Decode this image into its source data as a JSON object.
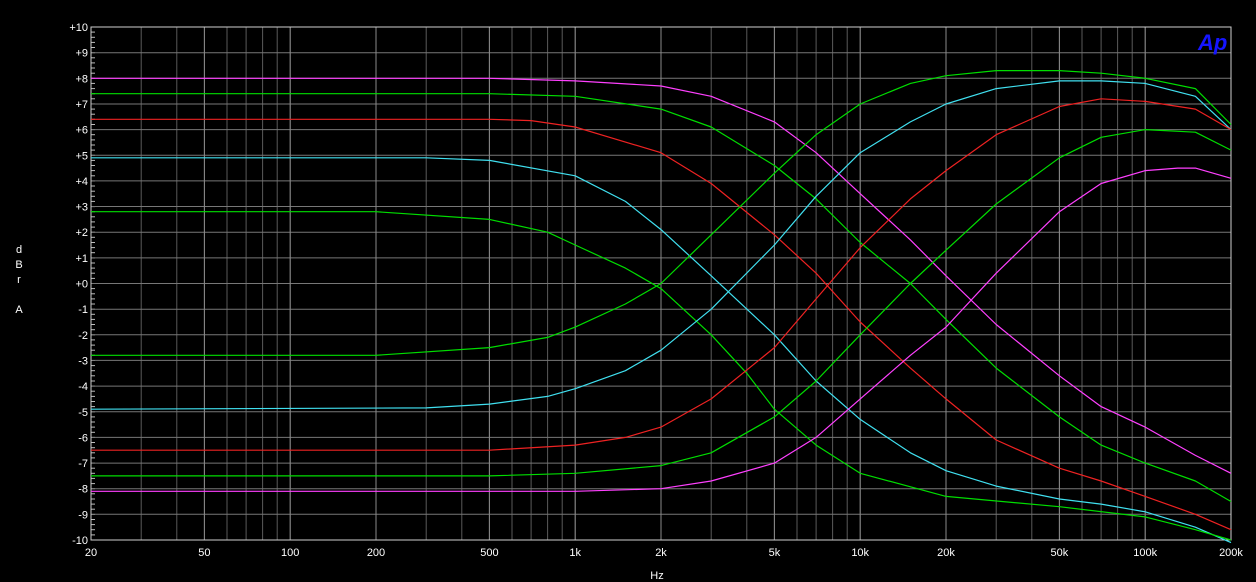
{
  "chart_data": {
    "type": "line",
    "logo": "Ap",
    "ylabel": [
      "d",
      "B",
      "r",
      "",
      "A"
    ],
    "xlabel": "Hz",
    "x_scale": "log",
    "xlim": [
      20,
      200000
    ],
    "ylim": [
      -10,
      10
    ],
    "grid": true,
    "x_ticks": [
      {
        "v": 20,
        "label": "20"
      },
      {
        "v": 50,
        "label": "50"
      },
      {
        "v": 100,
        "label": "100"
      },
      {
        "v": 200,
        "label": "200"
      },
      {
        "v": 500,
        "label": "500"
      },
      {
        "v": 1000,
        "label": "1k"
      },
      {
        "v": 2000,
        "label": "2k"
      },
      {
        "v": 5000,
        "label": "5k"
      },
      {
        "v": 10000,
        "label": "10k"
      },
      {
        "v": 20000,
        "label": "20k"
      },
      {
        "v": 50000,
        "label": "50k"
      },
      {
        "v": 100000,
        "label": "100k"
      },
      {
        "v": 200000,
        "label": "200k"
      }
    ],
    "y_ticks": [
      {
        "v": 10,
        "label": "+10"
      },
      {
        "v": 9,
        "label": "+9"
      },
      {
        "v": 8,
        "label": "+8"
      },
      {
        "v": 7,
        "label": "+7"
      },
      {
        "v": 6,
        "label": "+6"
      },
      {
        "v": 5,
        "label": "+5"
      },
      {
        "v": 4,
        "label": "+4"
      },
      {
        "v": 3,
        "label": "+3"
      },
      {
        "v": 2,
        "label": "+2"
      },
      {
        "v": 1,
        "label": "+1"
      },
      {
        "v": 0,
        "label": "+0"
      },
      {
        "v": -1,
        "label": "-1"
      },
      {
        "v": -2,
        "label": "-2"
      },
      {
        "v": -3,
        "label": "-3"
      },
      {
        "v": -4,
        "label": "-4"
      },
      {
        "v": -5,
        "label": "-5"
      },
      {
        "v": -6,
        "label": "-6"
      },
      {
        "v": -7,
        "label": "-7"
      },
      {
        "v": -8,
        "label": "-8"
      },
      {
        "v": -9,
        "label": "-9"
      },
      {
        "v": -10,
        "label": "-10"
      }
    ],
    "series": [
      {
        "color": "#ff40ff",
        "points": [
          [
            20,
            8
          ],
          [
            500,
            8
          ],
          [
            1000,
            7.9
          ],
          [
            2000,
            7.7
          ],
          [
            3000,
            7.3
          ],
          [
            5000,
            6.3
          ],
          [
            7000,
            5.1
          ],
          [
            10000,
            3.5
          ],
          [
            15000,
            1.7
          ],
          [
            20000,
            0.3
          ],
          [
            30000,
            -1.6
          ],
          [
            50000,
            -3.6
          ],
          [
            70000,
            -4.8
          ],
          [
            100000,
            -5.6
          ],
          [
            150000,
            -6.7
          ],
          [
            200000,
            -7.4
          ]
        ]
      },
      {
        "color": "#00dd00",
        "points": [
          [
            20,
            7.4
          ],
          [
            500,
            7.4
          ],
          [
            1000,
            7.3
          ],
          [
            2000,
            6.8
          ],
          [
            3000,
            6.1
          ],
          [
            5000,
            4.6
          ],
          [
            7000,
            3.3
          ],
          [
            10000,
            1.6
          ],
          [
            15000,
            0
          ],
          [
            20000,
            -1.4
          ],
          [
            30000,
            -3.3
          ],
          [
            50000,
            -5.2
          ],
          [
            70000,
            -6.3
          ],
          [
            100000,
            -7
          ],
          [
            150000,
            -7.7
          ],
          [
            200000,
            -8.5
          ]
        ]
      },
      {
        "color": "#ee2222",
        "points": [
          [
            20,
            6.4
          ],
          [
            500,
            6.4
          ],
          [
            700,
            6.35
          ],
          [
            1000,
            6.1
          ],
          [
            2000,
            5.1
          ],
          [
            3000,
            3.9
          ],
          [
            5000,
            1.9
          ],
          [
            7000,
            0.4
          ],
          [
            10000,
            -1.5
          ],
          [
            15000,
            -3.3
          ],
          [
            20000,
            -4.5
          ],
          [
            30000,
            -6.1
          ],
          [
            50000,
            -7.2
          ],
          [
            70000,
            -7.7
          ],
          [
            100000,
            -8.3
          ],
          [
            150000,
            -9
          ],
          [
            200000,
            -9.6
          ]
        ]
      },
      {
        "color": "#40e0f0",
        "points": [
          [
            20,
            4.9
          ],
          [
            300,
            4.9
          ],
          [
            500,
            4.8
          ],
          [
            1000,
            4.2
          ],
          [
            1500,
            3.2
          ],
          [
            2000,
            2.1
          ],
          [
            3000,
            0.3
          ],
          [
            5000,
            -2
          ],
          [
            7000,
            -3.8
          ],
          [
            10000,
            -5.3
          ],
          [
            15000,
            -6.6
          ],
          [
            20000,
            -7.3
          ],
          [
            30000,
            -7.9
          ],
          [
            50000,
            -8.4
          ],
          [
            70000,
            -8.6
          ],
          [
            100000,
            -8.9
          ],
          [
            150000,
            -9.5
          ],
          [
            200000,
            -10.1
          ]
        ]
      },
      {
        "color": "#00dd00",
        "points": [
          [
            20,
            2.8
          ],
          [
            200,
            2.8
          ],
          [
            500,
            2.5
          ],
          [
            800,
            2
          ],
          [
            1000,
            1.5
          ],
          [
            1500,
            0.6
          ],
          [
            2000,
            -0.2
          ],
          [
            3000,
            -2
          ],
          [
            4000,
            -3.5
          ],
          [
            5000,
            -4.9
          ],
          [
            7000,
            -6.3
          ],
          [
            10000,
            -7.4
          ],
          [
            20000,
            -8.3
          ],
          [
            50000,
            -8.7
          ],
          [
            100000,
            -9.1
          ],
          [
            150000,
            -9.6
          ],
          [
            200000,
            -10
          ]
        ]
      },
      {
        "color": "#00dd00",
        "points": [
          [
            20,
            -2.8
          ],
          [
            200,
            -2.8
          ],
          [
            500,
            -2.5
          ],
          [
            800,
            -2.1
          ],
          [
            1000,
            -1.7
          ],
          [
            1500,
            -0.8
          ],
          [
            2000,
            0
          ],
          [
            3000,
            1.9
          ],
          [
            5000,
            4.3
          ],
          [
            7000,
            5.8
          ],
          [
            10000,
            7
          ],
          [
            15000,
            7.8
          ],
          [
            20000,
            8.1
          ],
          [
            30000,
            8.3
          ],
          [
            50000,
            8.3
          ],
          [
            70000,
            8.2
          ],
          [
            100000,
            8
          ],
          [
            150000,
            7.6
          ],
          [
            200000,
            6.2
          ]
        ]
      },
      {
        "color": "#40e0f0",
        "points": [
          [
            20,
            -4.9
          ],
          [
            300,
            -4.85
          ],
          [
            500,
            -4.7
          ],
          [
            800,
            -4.4
          ],
          [
            1000,
            -4.1
          ],
          [
            1500,
            -3.4
          ],
          [
            2000,
            -2.6
          ],
          [
            3000,
            -1
          ],
          [
            5000,
            1.5
          ],
          [
            7000,
            3.4
          ],
          [
            10000,
            5.1
          ],
          [
            15000,
            6.3
          ],
          [
            20000,
            7
          ],
          [
            30000,
            7.6
          ],
          [
            50000,
            7.9
          ],
          [
            70000,
            7.9
          ],
          [
            100000,
            7.8
          ],
          [
            150000,
            7.3
          ],
          [
            200000,
            6
          ]
        ]
      },
      {
        "color": "#ee2222",
        "points": [
          [
            20,
            -6.5
          ],
          [
            500,
            -6.5
          ],
          [
            1000,
            -6.3
          ],
          [
            1500,
            -6
          ],
          [
            2000,
            -5.6
          ],
          [
            3000,
            -4.5
          ],
          [
            5000,
            -2.5
          ],
          [
            7000,
            -0.6
          ],
          [
            10000,
            1.4
          ],
          [
            15000,
            3.3
          ],
          [
            20000,
            4.4
          ],
          [
            30000,
            5.8
          ],
          [
            50000,
            6.9
          ],
          [
            70000,
            7.2
          ],
          [
            100000,
            7.1
          ],
          [
            150000,
            6.8
          ],
          [
            200000,
            6
          ]
        ]
      },
      {
        "color": "#00dd00",
        "points": [
          [
            20,
            -7.5
          ],
          [
            500,
            -7.5
          ],
          [
            1000,
            -7.4
          ],
          [
            2000,
            -7.1
          ],
          [
            3000,
            -6.6
          ],
          [
            5000,
            -5.2
          ],
          [
            7000,
            -3.8
          ],
          [
            10000,
            -2
          ],
          [
            15000,
            0
          ],
          [
            20000,
            1.3
          ],
          [
            30000,
            3.1
          ],
          [
            50000,
            4.9
          ],
          [
            70000,
            5.7
          ],
          [
            100000,
            6
          ],
          [
            150000,
            5.9
          ],
          [
            200000,
            5.2
          ]
        ]
      },
      {
        "color": "#ff40ff",
        "points": [
          [
            20,
            -8.1
          ],
          [
            500,
            -8.1
          ],
          [
            1000,
            -8.1
          ],
          [
            2000,
            -8
          ],
          [
            3000,
            -7.7
          ],
          [
            5000,
            -7
          ],
          [
            7000,
            -6
          ],
          [
            10000,
            -4.5
          ],
          [
            15000,
            -2.8
          ],
          [
            20000,
            -1.7
          ],
          [
            30000,
            0.4
          ],
          [
            50000,
            2.8
          ],
          [
            70000,
            3.9
          ],
          [
            100000,
            4.4
          ],
          [
            130000,
            4.5
          ],
          [
            150000,
            4.5
          ],
          [
            200000,
            4.1
          ]
        ]
      }
    ]
  }
}
